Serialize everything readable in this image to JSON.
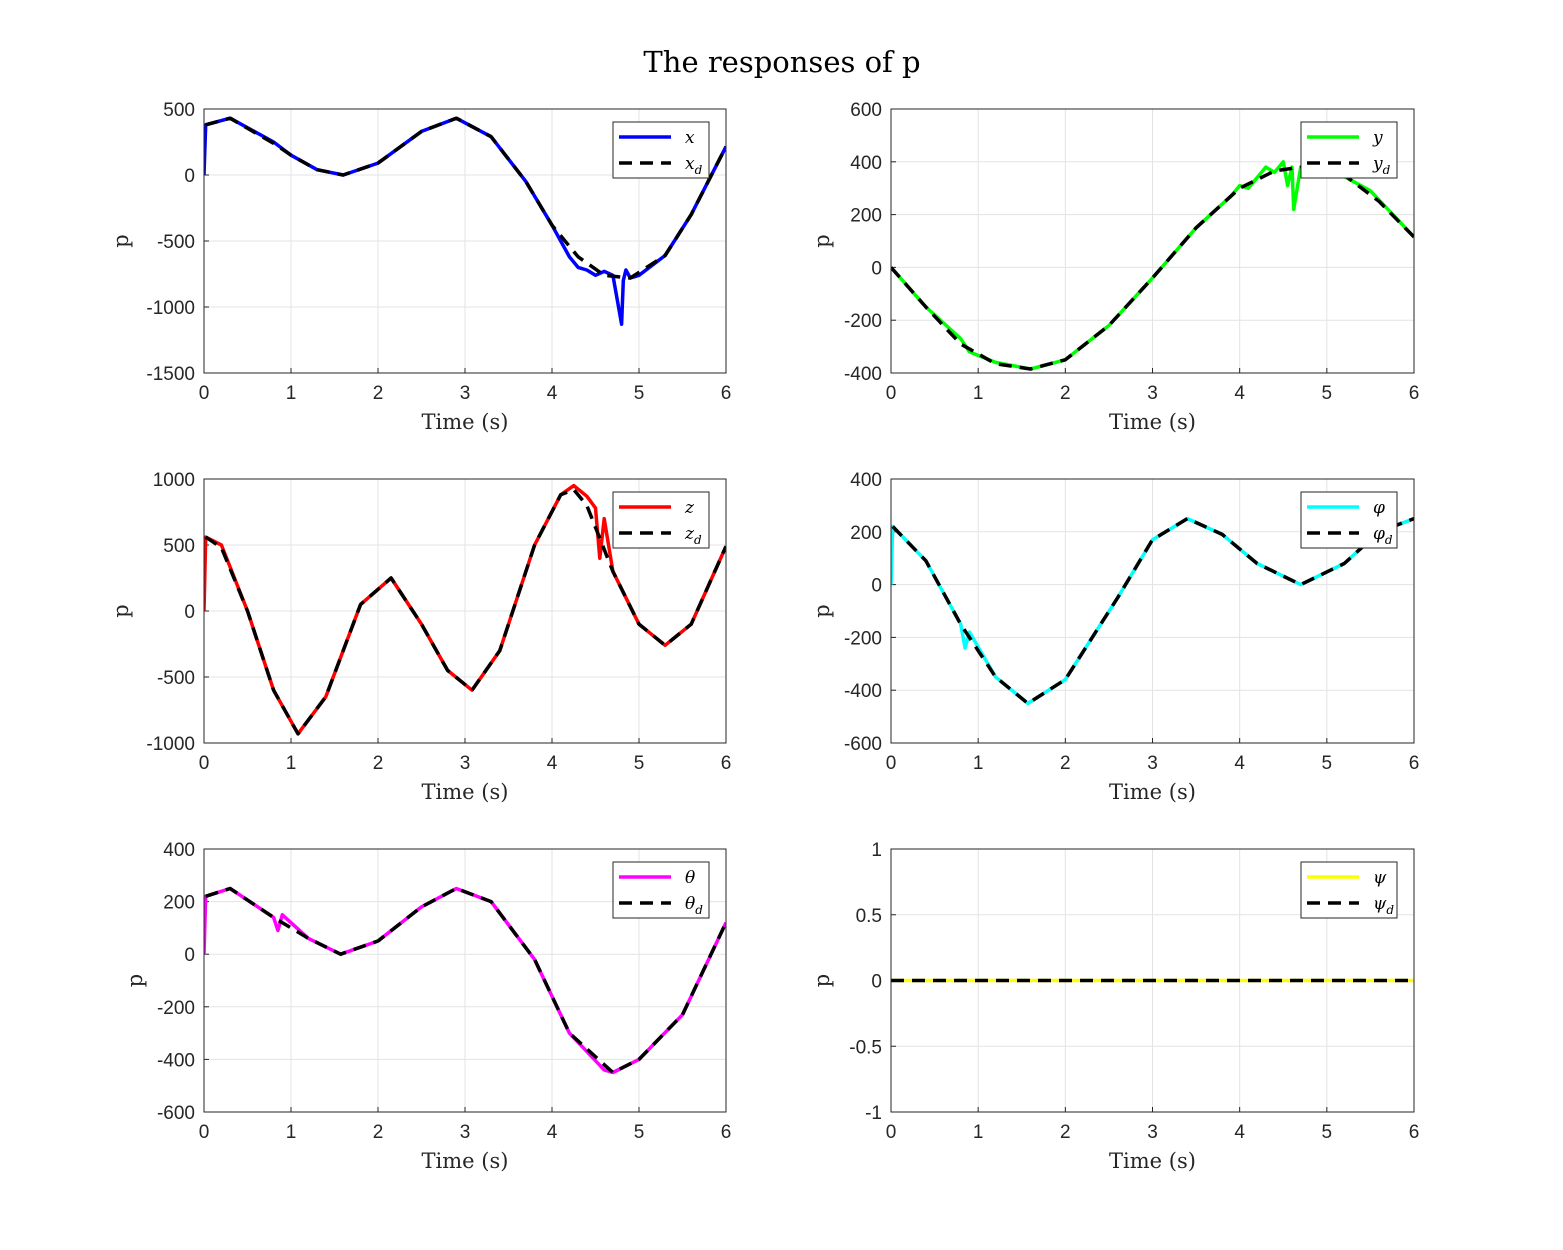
{
  "figure": {
    "title": "The responses of p"
  },
  "chart_data": [
    {
      "type": "line",
      "xlabel": "Time (s)",
      "ylabel": "p",
      "xlim": [
        0,
        6
      ],
      "ylim": [
        -1500,
        500
      ],
      "xticks": [
        "0",
        "1",
        "2",
        "3",
        "4",
        "5",
        "6"
      ],
      "yticks": [
        "-1500",
        "-1000",
        "-500",
        "0",
        "500"
      ],
      "grid": true,
      "legend_position": "top-right",
      "series": [
        {
          "name": "x",
          "color": "#0000ff",
          "style": "solid",
          "x": [
            0,
            0.02,
            0.3,
            0.8,
            0.9,
            1.0,
            1.3,
            1.6,
            2.0,
            2.5,
            2.9,
            3.3,
            3.7,
            4.0,
            4.1,
            4.2,
            4.3,
            4.4,
            4.5,
            4.6,
            4.7,
            4.8,
            4.82,
            4.85,
            4.9,
            5.0,
            5.3,
            5.6,
            6.0
          ],
          "y": [
            0,
            380,
            430,
            250,
            200,
            150,
            40,
            0,
            90,
            330,
            430,
            290,
            -50,
            -380,
            -500,
            -620,
            -700,
            -720,
            -760,
            -730,
            -760,
            -1130,
            -800,
            -720,
            -780,
            -760,
            -610,
            -300,
            215
          ]
        },
        {
          "name": "x_d",
          "color": "#000000",
          "style": "dashed",
          "x": [
            0.02,
            0.3,
            0.8,
            1.0,
            1.3,
            1.6,
            2.0,
            2.5,
            2.9,
            3.3,
            3.7,
            4.0,
            4.3,
            4.6,
            4.9,
            5.3,
            5.6,
            6.0
          ],
          "y": [
            380,
            430,
            240,
            150,
            40,
            0,
            90,
            330,
            430,
            290,
            -50,
            -380,
            -620,
            -760,
            -780,
            -610,
            -300,
            215
          ]
        }
      ]
    },
    {
      "type": "line",
      "xlabel": "Time (s)",
      "ylabel": "p",
      "xlim": [
        0,
        6
      ],
      "ylim": [
        -400,
        600
      ],
      "xticks": [
        "0",
        "1",
        "2",
        "3",
        "4",
        "5",
        "6"
      ],
      "yticks": [
        "-400",
        "-200",
        "0",
        "200",
        "400",
        "600"
      ],
      "grid": true,
      "legend_position": "top-right",
      "series": [
        {
          "name": "y",
          "color": "#00ff00",
          "style": "solid",
          "x": [
            0,
            0.4,
            0.8,
            0.9,
            1.2,
            1.6,
            2.0,
            2.5,
            3.0,
            3.5,
            3.9,
            4.0,
            4.1,
            4.2,
            4.3,
            4.4,
            4.5,
            4.55,
            4.6,
            4.62,
            4.7,
            5.0,
            5.5,
            6.0
          ],
          "y": [
            0,
            -150,
            -270,
            -320,
            -360,
            -385,
            -350,
            -220,
            -40,
            150,
            270,
            310,
            300,
            340,
            380,
            360,
            400,
            310,
            380,
            220,
            380,
            380,
            290,
            115
          ]
        },
        {
          "name": "y_d",
          "color": "#000000",
          "style": "dashed",
          "x": [
            0,
            0.4,
            0.8,
            1.2,
            1.6,
            2.0,
            2.5,
            3.0,
            3.5,
            4.0,
            4.4,
            4.8,
            5.2,
            5.6,
            6.0
          ],
          "y": [
            0,
            -150,
            -290,
            -365,
            -385,
            -350,
            -220,
            -40,
            150,
            300,
            365,
            385,
            350,
            250,
            115
          ]
        }
      ]
    },
    {
      "type": "line",
      "xlabel": "Time (s)",
      "ylabel": "p",
      "xlim": [
        0,
        6
      ],
      "ylim": [
        -1000,
        1000
      ],
      "xticks": [
        "0",
        "1",
        "2",
        "3",
        "4",
        "5",
        "6"
      ],
      "yticks": [
        "-1000",
        "-500",
        "0",
        "500",
        "1000"
      ],
      "grid": true,
      "legend_position": "top-right",
      "series": [
        {
          "name": "z",
          "color": "#ff0000",
          "style": "solid",
          "x": [
            0,
            0.02,
            0.2,
            0.5,
            0.8,
            1.08,
            1.4,
            1.8,
            2.15,
            2.5,
            2.8,
            3.08,
            3.4,
            3.8,
            4.1,
            4.25,
            4.4,
            4.5,
            4.55,
            4.6,
            4.7,
            5.0,
            5.3,
            5.6,
            6.0
          ],
          "y": [
            0,
            560,
            500,
            0,
            -600,
            -930,
            -650,
            50,
            250,
            -100,
            -450,
            -600,
            -300,
            500,
            880,
            950,
            870,
            780,
            400,
            700,
            300,
            -100,
            -260,
            -100,
            490
          ]
        },
        {
          "name": "z_d",
          "color": "#000000",
          "style": "dashed",
          "x": [
            0.02,
            0.2,
            0.5,
            0.8,
            1.08,
            1.4,
            1.8,
            2.15,
            2.5,
            2.8,
            3.08,
            3.4,
            3.8,
            4.1,
            4.25,
            4.4,
            4.7,
            5.0,
            5.3,
            5.6,
            6.0
          ],
          "y": [
            560,
            480,
            0,
            -600,
            -930,
            -650,
            50,
            250,
            -100,
            -450,
            -600,
            -300,
            500,
            880,
            920,
            800,
            300,
            -100,
            -260,
            -100,
            490
          ]
        }
      ]
    },
    {
      "type": "line",
      "xlabel": "Time (s)",
      "ylabel": "p",
      "xlim": [
        0,
        6
      ],
      "ylim": [
        -600,
        400
      ],
      "xticks": [
        "0",
        "1",
        "2",
        "3",
        "4",
        "5",
        "6"
      ],
      "yticks": [
        "-600",
        "-400",
        "-200",
        "0",
        "200",
        "400"
      ],
      "grid": true,
      "legend_position": "top-right",
      "series": [
        {
          "name": "φ",
          "color": "#00ffff",
          "style": "solid",
          "x": [
            0,
            0.02,
            0.4,
            0.8,
            0.85,
            0.9,
            1.2,
            1.57,
            2.0,
            2.6,
            3.0,
            3.4,
            3.8,
            4.2,
            4.7,
            5.2,
            5.6,
            6.0
          ],
          "y": [
            0,
            220,
            90,
            -150,
            -240,
            -180,
            -350,
            -450,
            -360,
            -50,
            170,
            250,
            190,
            80,
            0,
            80,
            200,
            250
          ]
        },
        {
          "name": "φ_d",
          "color": "#000000",
          "style": "dashed",
          "x": [
            0.02,
            0.4,
            0.8,
            1.2,
            1.57,
            2.0,
            2.6,
            3.0,
            3.4,
            3.8,
            4.2,
            4.7,
            5.2,
            5.6,
            6.0
          ],
          "y": [
            220,
            90,
            -150,
            -350,
            -450,
            -360,
            -50,
            170,
            250,
            190,
            80,
            0,
            80,
            200,
            250
          ]
        }
      ]
    },
    {
      "type": "line",
      "xlabel": "Time (s)",
      "ylabel": "p",
      "xlim": [
        0,
        6
      ],
      "ylim": [
        -600,
        400
      ],
      "xticks": [
        "0",
        "1",
        "2",
        "3",
        "4",
        "5",
        "6"
      ],
      "yticks": [
        "-600",
        "-400",
        "-200",
        "0",
        "200",
        "400"
      ],
      "grid": true,
      "legend_position": "top-right",
      "series": [
        {
          "name": "θ",
          "color": "#ff00ff",
          "style": "solid",
          "x": [
            0,
            0.02,
            0.3,
            0.8,
            0.85,
            0.9,
            1.2,
            1.57,
            2.0,
            2.5,
            2.9,
            3.3,
            3.8,
            4.2,
            4.6,
            4.7,
            5.0,
            5.5,
            6.0
          ],
          "y": [
            0,
            220,
            250,
            140,
            90,
            150,
            60,
            0,
            50,
            180,
            250,
            200,
            -20,
            -300,
            -440,
            -450,
            -400,
            -230,
            120
          ]
        },
        {
          "name": "θ_d",
          "color": "#000000",
          "style": "dashed",
          "x": [
            0.02,
            0.3,
            0.8,
            1.2,
            1.57,
            2.0,
            2.5,
            2.9,
            3.3,
            3.8,
            4.2,
            4.7,
            5.0,
            5.5,
            6.0
          ],
          "y": [
            220,
            250,
            140,
            60,
            0,
            50,
            180,
            250,
            200,
            -20,
            -300,
            -450,
            -400,
            -230,
            120
          ]
        }
      ]
    },
    {
      "type": "line",
      "xlabel": "Time (s)",
      "ylabel": "p",
      "xlim": [
        0,
        6
      ],
      "ylim": [
        -1,
        1
      ],
      "xticks": [
        "0",
        "1",
        "2",
        "3",
        "4",
        "5",
        "6"
      ],
      "yticks": [
        "-1",
        "-0.5",
        "0",
        "0.5",
        "1"
      ],
      "grid": true,
      "legend_position": "top-right",
      "series": [
        {
          "name": "ψ",
          "color": "#ffff00",
          "style": "solid",
          "x": [
            0,
            6
          ],
          "y": [
            0,
            0
          ]
        },
        {
          "name": "ψ_d",
          "color": "#000000",
          "style": "dashed",
          "x": [
            0,
            6
          ],
          "y": [
            0,
            0
          ]
        }
      ]
    }
  ]
}
